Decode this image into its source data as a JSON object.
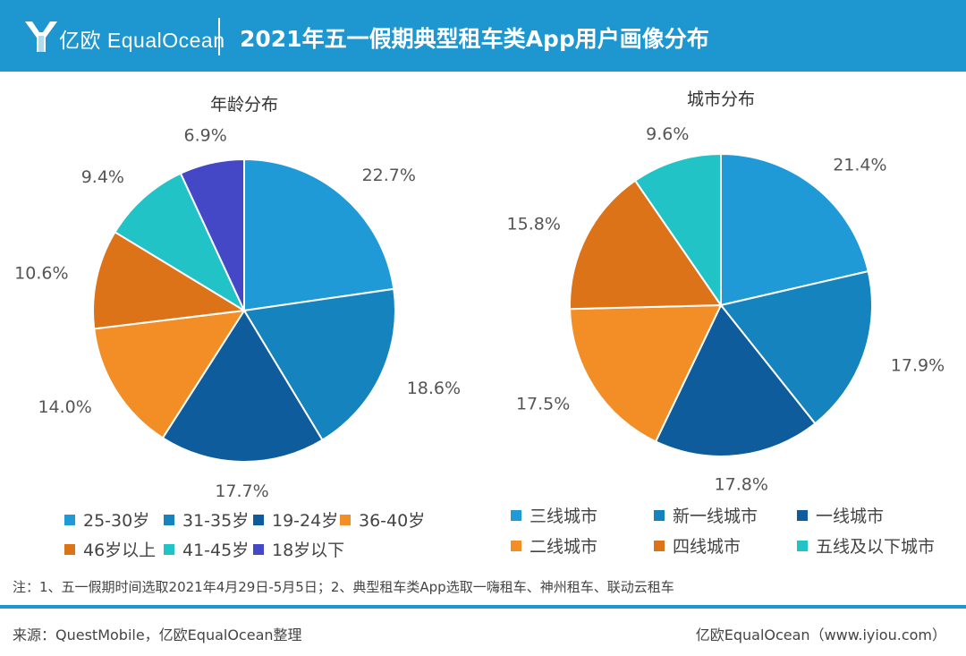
{
  "header": {
    "brand": "亿欧 EqualOcean",
    "title": "2021年五一假期典型租车类App用户画像分布"
  },
  "chart_data": [
    {
      "type": "pie",
      "title": "年龄分布",
      "slices": [
        {
          "label": "25-30岁",
          "value": 22.7,
          "display": "22.7%",
          "color": "#1f9ad6"
        },
        {
          "label": "31-35岁",
          "value": 18.6,
          "display": "18.6%",
          "color": "#1583bd"
        },
        {
          "label": "19-24岁",
          "value": 17.7,
          "display": "17.7%",
          "color": "#0f5c9c"
        },
        {
          "label": "36-40岁",
          "value": 14.0,
          "display": "14.0%",
          "color": "#f28e25"
        },
        {
          "label": "46岁以上",
          "value": 10.6,
          "display": "10.6%",
          "color": "#dd7318"
        },
        {
          "label": "41-45岁",
          "value": 9.4,
          "display": "9.4%",
          "color": "#22c3c7"
        },
        {
          "label": "18岁以下",
          "value": 6.9,
          "display": "6.9%",
          "color": "#4448c6"
        }
      ]
    },
    {
      "type": "pie",
      "title": "城市分布",
      "slices": [
        {
          "label": "三线城市",
          "value": 21.4,
          "display": "21.4%",
          "color": "#1f9ad6"
        },
        {
          "label": "新一线城市",
          "value": 17.9,
          "display": "17.9%",
          "color": "#1583bd"
        },
        {
          "label": "一线城市",
          "value": 17.8,
          "display": "17.8%",
          "color": "#0f5c9c"
        },
        {
          "label": "二线城市",
          "value": 17.5,
          "display": "17.5%",
          "color": "#f28e25"
        },
        {
          "label": "四线城市",
          "value": 15.8,
          "display": "15.8%",
          "color": "#dd7318"
        },
        {
          "label": "五线及以下城市",
          "value": 9.6,
          "display": "9.6%",
          "color": "#22c3c7"
        }
      ]
    }
  ],
  "note": "注：1、五一假期时间选取2021年4月29日-5月5日；2、典型租车类App选取一嗨租车、神州租车、联动云租车",
  "footer": {
    "source": "来源：QuestMobile，亿欧EqualOcean整理",
    "credit": "亿欧EqualOcean（www.iyiou.com）"
  }
}
